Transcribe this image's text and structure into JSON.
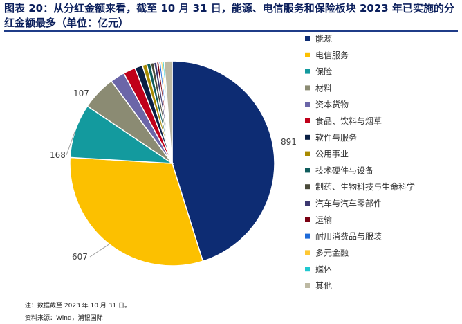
{
  "title": "图表 20：从分红金额来看，截至 10 月 31 日，能源、电信服务和保险板块 2023 年已实施的分红金额最多（单位：亿元）",
  "chart_data": {
    "type": "pie",
    "title": "图表 20：从分红金额来看，截至 10 月 31 日，能源、电信服务和保险板块 2023 年已实施的分红金额最多（单位：亿元）",
    "legend_position": "right",
    "slices": [
      {
        "name": "能源",
        "value": 891,
        "color": "#0d2c73",
        "label": "891"
      },
      {
        "name": "电信服务",
        "value": 607,
        "color": "#fcc000",
        "label": "607"
      },
      {
        "name": "保险",
        "value": 168,
        "color": "#139a9e",
        "label": "168"
      },
      {
        "name": "材料",
        "value": 107,
        "color": "#8b8b73",
        "label": "107"
      },
      {
        "name": "资本货物",
        "value": 45,
        "color": "#6b66a8",
        "label": ""
      },
      {
        "name": "食品、饮料与烟草",
        "value": 38,
        "color": "#c0001a",
        "label": ""
      },
      {
        "name": "软件与服务",
        "value": 24,
        "color": "#0a1f44",
        "label": ""
      },
      {
        "name": "公用事业",
        "value": 14,
        "color": "#a88a00",
        "label": ""
      },
      {
        "name": "技术硬件与设备",
        "value": 12,
        "color": "#0f5c5c",
        "label": ""
      },
      {
        "name": "制药、生物科技与生命科学",
        "value": 10,
        "color": "#4a4a3a",
        "label": ""
      },
      {
        "name": "汽车与汽车零部件",
        "value": 9,
        "color": "#3c3870",
        "label": ""
      },
      {
        "name": "运输",
        "value": 7,
        "color": "#7a0012",
        "label": ""
      },
      {
        "name": "耐用消费品与服装",
        "value": 6,
        "color": "#1e6ad8",
        "label": ""
      },
      {
        "name": "多元金融",
        "value": 5,
        "color": "#ffc833",
        "label": ""
      },
      {
        "name": "媒体",
        "value": 5,
        "color": "#20c8d0",
        "label": ""
      },
      {
        "name": "其他",
        "value": 25,
        "color": "#bdb9a3",
        "label": ""
      }
    ]
  },
  "footnotes": {
    "note": "注：数据截至 2023 年 10 月 31 日。",
    "source": "资料来源：Wind，浦银国际"
  }
}
